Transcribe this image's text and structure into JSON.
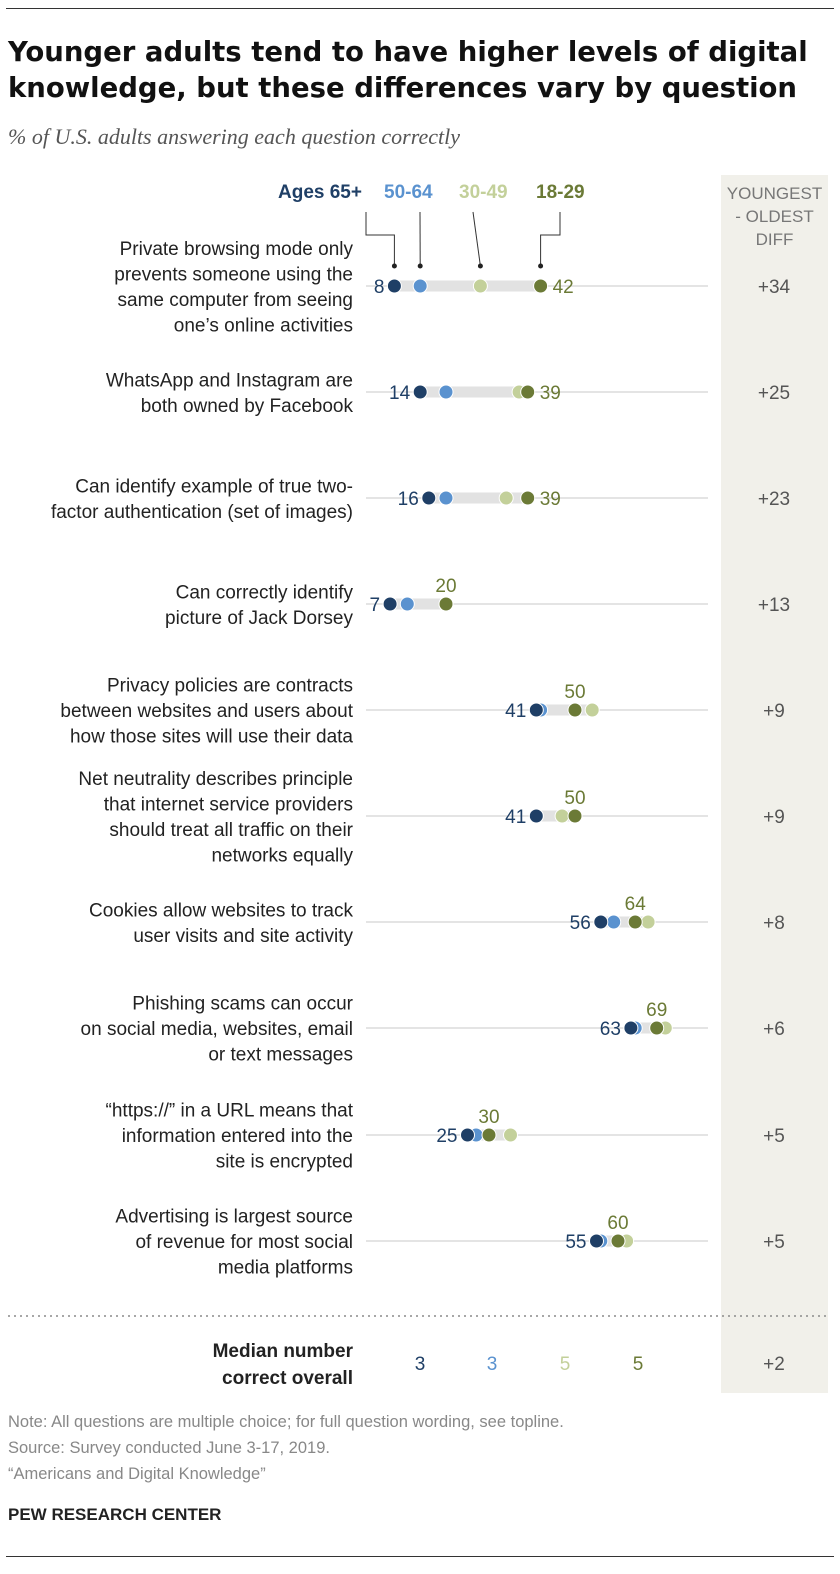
{
  "header": {
    "title": "Younger adults tend to have higher levels of digital knowledge, but these differences vary by question",
    "subtitle": "% of U.S. adults answering each question correctly"
  },
  "colors": {
    "age_65_plus": "#1f3f66",
    "age_50_64": "#5a92cf",
    "age_30_49": "#c3d09a",
    "age_18_29": "#6b7a36"
  },
  "chart_data": {
    "type": "dot-plot",
    "title": "Younger adults tend to have higher levels of digital knowledge, but these differences vary by question",
    "subtitle": "% of U.S. adults answering each question correctly",
    "xlim": [
      0,
      100
    ],
    "grid": false,
    "legend_position": "top",
    "series": [
      {
        "key": "age_65_plus",
        "name": "Ages 65+"
      },
      {
        "key": "age_50_64",
        "name": "50-64"
      },
      {
        "key": "age_30_49",
        "name": "30-49"
      },
      {
        "key": "age_18_29",
        "name": "18-29"
      }
    ],
    "diff_header": [
      "YOUNGEST",
      "- OLDEST",
      "DIFF"
    ],
    "questions": [
      {
        "lines": [
          "Private browsing mode only",
          "prevents someone using the",
          "same computer from seeing",
          "one’s online activities"
        ],
        "values": [
          8,
          14,
          28,
          42
        ],
        "low_label": "8",
        "high_label": "42",
        "diff": "+34"
      },
      {
        "lines": [
          "WhatsApp and Instagram are",
          "both owned by Facebook"
        ],
        "values": [
          14,
          20,
          37,
          39
        ],
        "low_label": "14",
        "high_label": "39",
        "diff": "+25"
      },
      {
        "lines": [
          "Can identify example of true two-",
          "factor authentication (set of images)"
        ],
        "values": [
          16,
          20,
          34,
          39
        ],
        "low_label": "16",
        "high_label": "39",
        "diff": "+23"
      },
      {
        "lines": [
          "Can correctly identify",
          "picture of Jack Dorsey"
        ],
        "values": [
          7,
          11,
          20,
          20
        ],
        "low_label": "7",
        "high_label": "20",
        "diff": "+13"
      },
      {
        "lines": [
          "Privacy policies are contracts",
          "between websites and users about",
          "how those sites will use their data"
        ],
        "values": [
          41,
          42,
          54,
          50
        ],
        "low_label": "41",
        "high_label": "50",
        "diff": "+9"
      },
      {
        "lines": [
          "Net neutrality describes principle",
          "that internet service providers",
          "should treat all traffic on their",
          "networks equally"
        ],
        "values": [
          41,
          41,
          47,
          50
        ],
        "low_label": "41",
        "high_label": "50",
        "diff": "+9"
      },
      {
        "lines": [
          "Cookies allow websites to track",
          "user visits and site activity"
        ],
        "values": [
          56,
          59,
          67,
          64
        ],
        "low_label": "56",
        "high_label": "64",
        "diff": "+8"
      },
      {
        "lines": [
          "Phishing scams can occur",
          "on social media, websites, email",
          "or text messages"
        ],
        "values": [
          63,
          64,
          71,
          69
        ],
        "low_label": "63",
        "high_label": "69",
        "diff": "+6"
      },
      {
        "lines": [
          "“https://” in a URL means that",
          "information entered into the",
          "site is encrypted"
        ],
        "values": [
          25,
          27,
          35,
          30
        ],
        "low_label": "25",
        "high_label": "30",
        "diff": "+5"
      },
      {
        "lines": [
          "Advertising is largest source",
          "of revenue for most social",
          "media platforms"
        ],
        "values": [
          55,
          56,
          62,
          60
        ],
        "low_label": "55",
        "high_label": "60",
        "diff": "+5"
      }
    ],
    "median": {
      "lines": [
        "Median number",
        "correct overall"
      ],
      "values": [
        "3",
        "3",
        "5",
        "5"
      ],
      "diff": "+2"
    }
  },
  "footer": {
    "note": "Note: All questions are multiple choice; for full question wording, see topline.",
    "source": "Source: Survey conducted June 3-17, 2019.",
    "report": "“Americans and Digital Knowledge”",
    "brand": "PEW RESEARCH CENTER"
  }
}
